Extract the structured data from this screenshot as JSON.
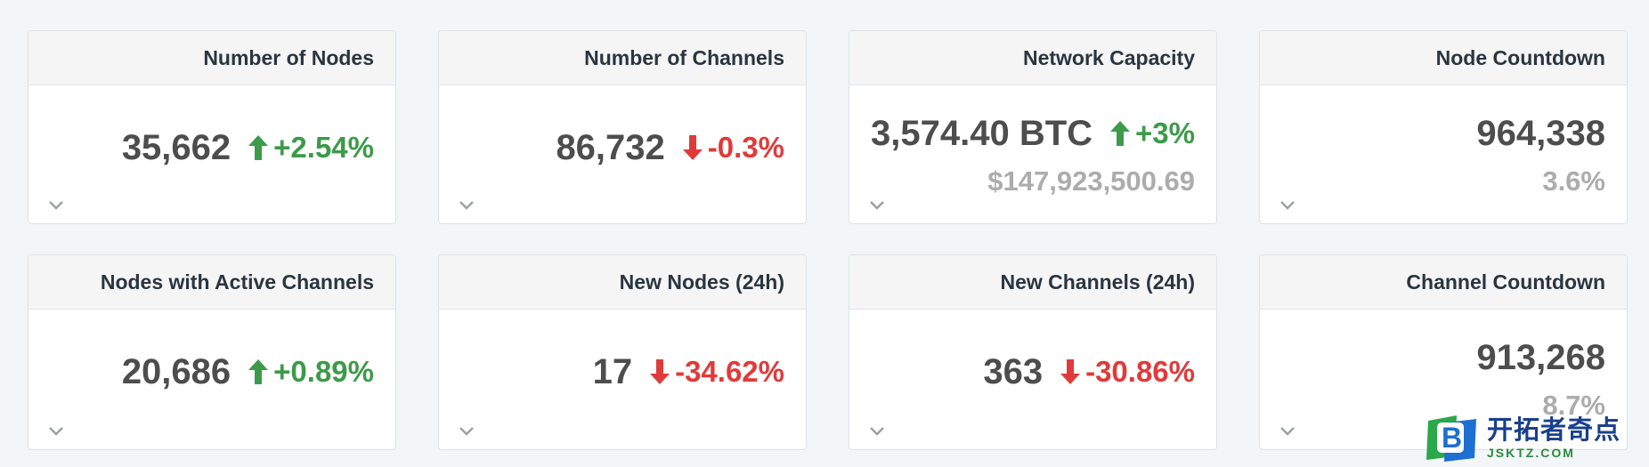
{
  "cards": [
    {
      "title": "Number of Nodes",
      "value": "35,662",
      "change": "+2.54%",
      "direction": "up",
      "sub": ""
    },
    {
      "title": "Number of Channels",
      "value": "86,732",
      "change": "-0.3%",
      "direction": "down",
      "sub": ""
    },
    {
      "title": "Network Capacity",
      "value": "3,574.40 BTC",
      "change": "+3%",
      "direction": "up",
      "sub": "$147,923,500.69"
    },
    {
      "title": "Node Countdown",
      "value": "964,338",
      "change": "",
      "direction": "",
      "sub": "3.6%"
    },
    {
      "title": "Nodes with Active Channels",
      "value": "20,686",
      "change": "+0.89%",
      "direction": "up",
      "sub": ""
    },
    {
      "title": "New Nodes (24h)",
      "value": "17",
      "change": "-34.62%",
      "direction": "down",
      "sub": ""
    },
    {
      "title": "New Channels (24h)",
      "value": "363",
      "change": "-30.86%",
      "direction": "down",
      "sub": ""
    },
    {
      "title": "Channel Countdown",
      "value": "913,268",
      "change": "",
      "direction": "",
      "sub": "8.7%"
    }
  ],
  "icons": {
    "up": "arrow-up-icon",
    "down": "arrow-down-icon",
    "expand": "chevron-down-icon"
  },
  "colors": {
    "up": "#3d9a4a",
    "down": "#e03a3a",
    "value": "#4d4d4d",
    "sub": "#acacac"
  },
  "watermark": {
    "title": "开拓者奇点",
    "sub": "JSKTZ.COM",
    "logo_letter": "B"
  }
}
